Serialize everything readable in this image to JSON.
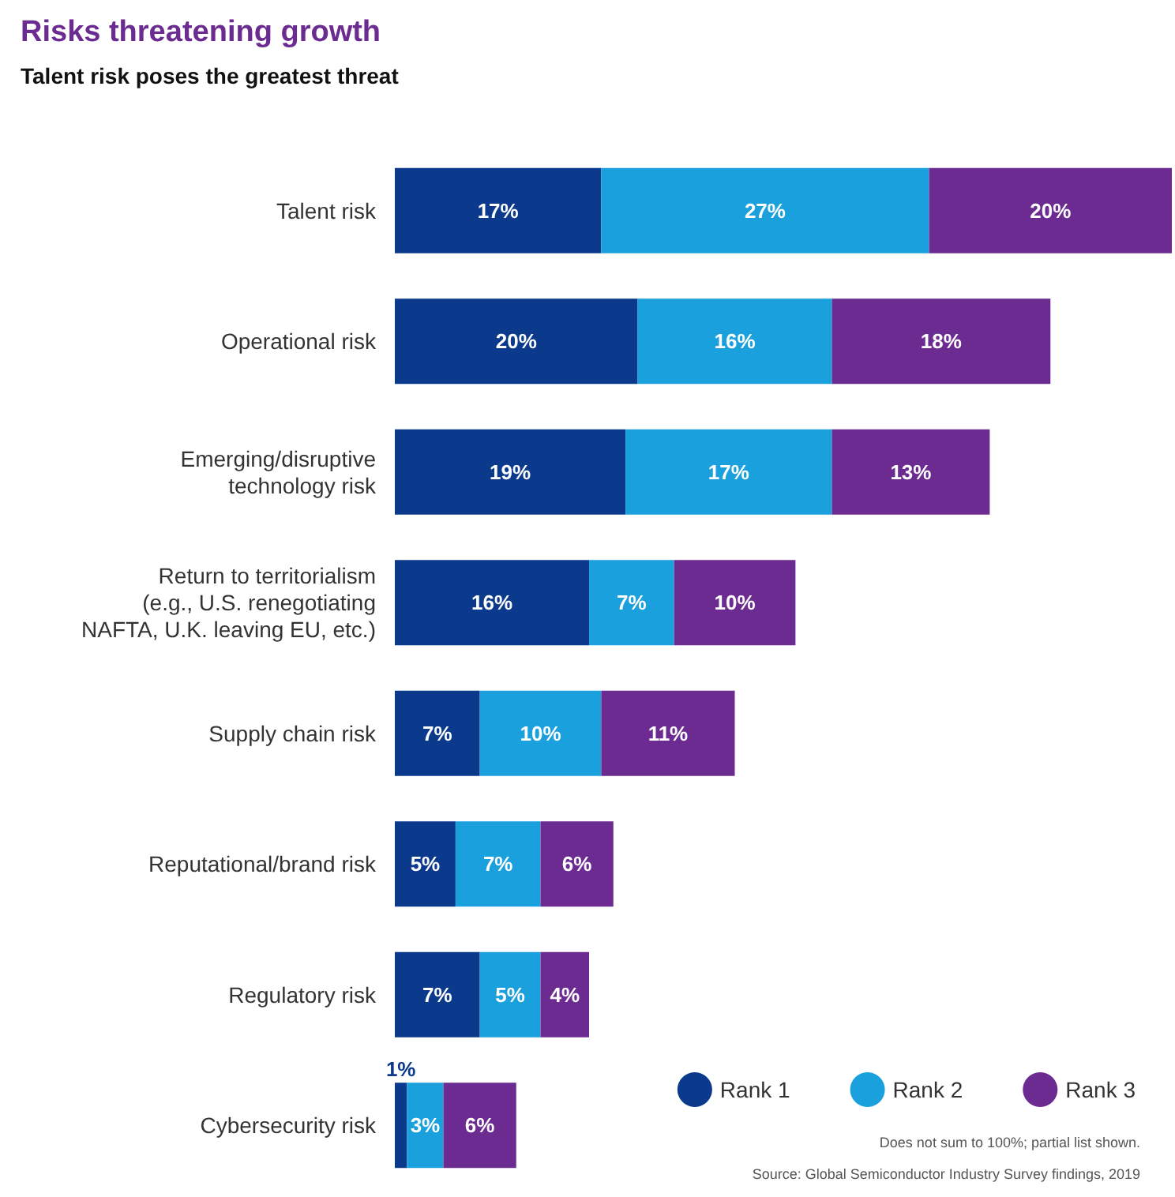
{
  "chart_data": {
    "type": "bar",
    "orientation": "horizontal",
    "stacked": true,
    "title": "Risks threatening growth",
    "subtitle": "Talent risk poses the greatest threat",
    "categories": [
      "Talent risk",
      "Operational risk",
      "Emerging/disruptive\ntechnology risk",
      "Return to territorialism\n(e.g., U.S. renegotiating\nNAFTA, U.K. leaving EU, etc.)",
      "Supply chain risk",
      "Reputational/brand risk",
      "Regulatory risk",
      "Cybersecurity risk"
    ],
    "series": [
      {
        "name": "Rank 1",
        "color": "#0b3a8c",
        "values": [
          17,
          20,
          19,
          16,
          7,
          5,
          7,
          1
        ],
        "value_labels": [
          "17%",
          "20%",
          "19%",
          "16%",
          "7%",
          "5%",
          "7%",
          "1%"
        ]
      },
      {
        "name": "Rank 2",
        "color": "#1aa0dd",
        "values": [
          27,
          16,
          17,
          7,
          10,
          7,
          5,
          3
        ],
        "value_labels": [
          "27%",
          "16%",
          "17%",
          "7%",
          "10%",
          "7%",
          "5%",
          "3%"
        ]
      },
      {
        "name": "Rank 3",
        "color": "#6b2b90",
        "values": [
          20,
          18,
          13,
          10,
          11,
          6,
          4,
          6
        ],
        "value_labels": [
          "20%",
          "18%",
          "13%",
          "10%",
          "11%",
          "6%",
          "4%",
          "6%"
        ]
      }
    ],
    "legend": "bottom right",
    "annotations": [
      "Does not sum to 100%; partial list shown.",
      "Source: Global Semiconductor Industry Survey findings, 2019"
    ]
  }
}
